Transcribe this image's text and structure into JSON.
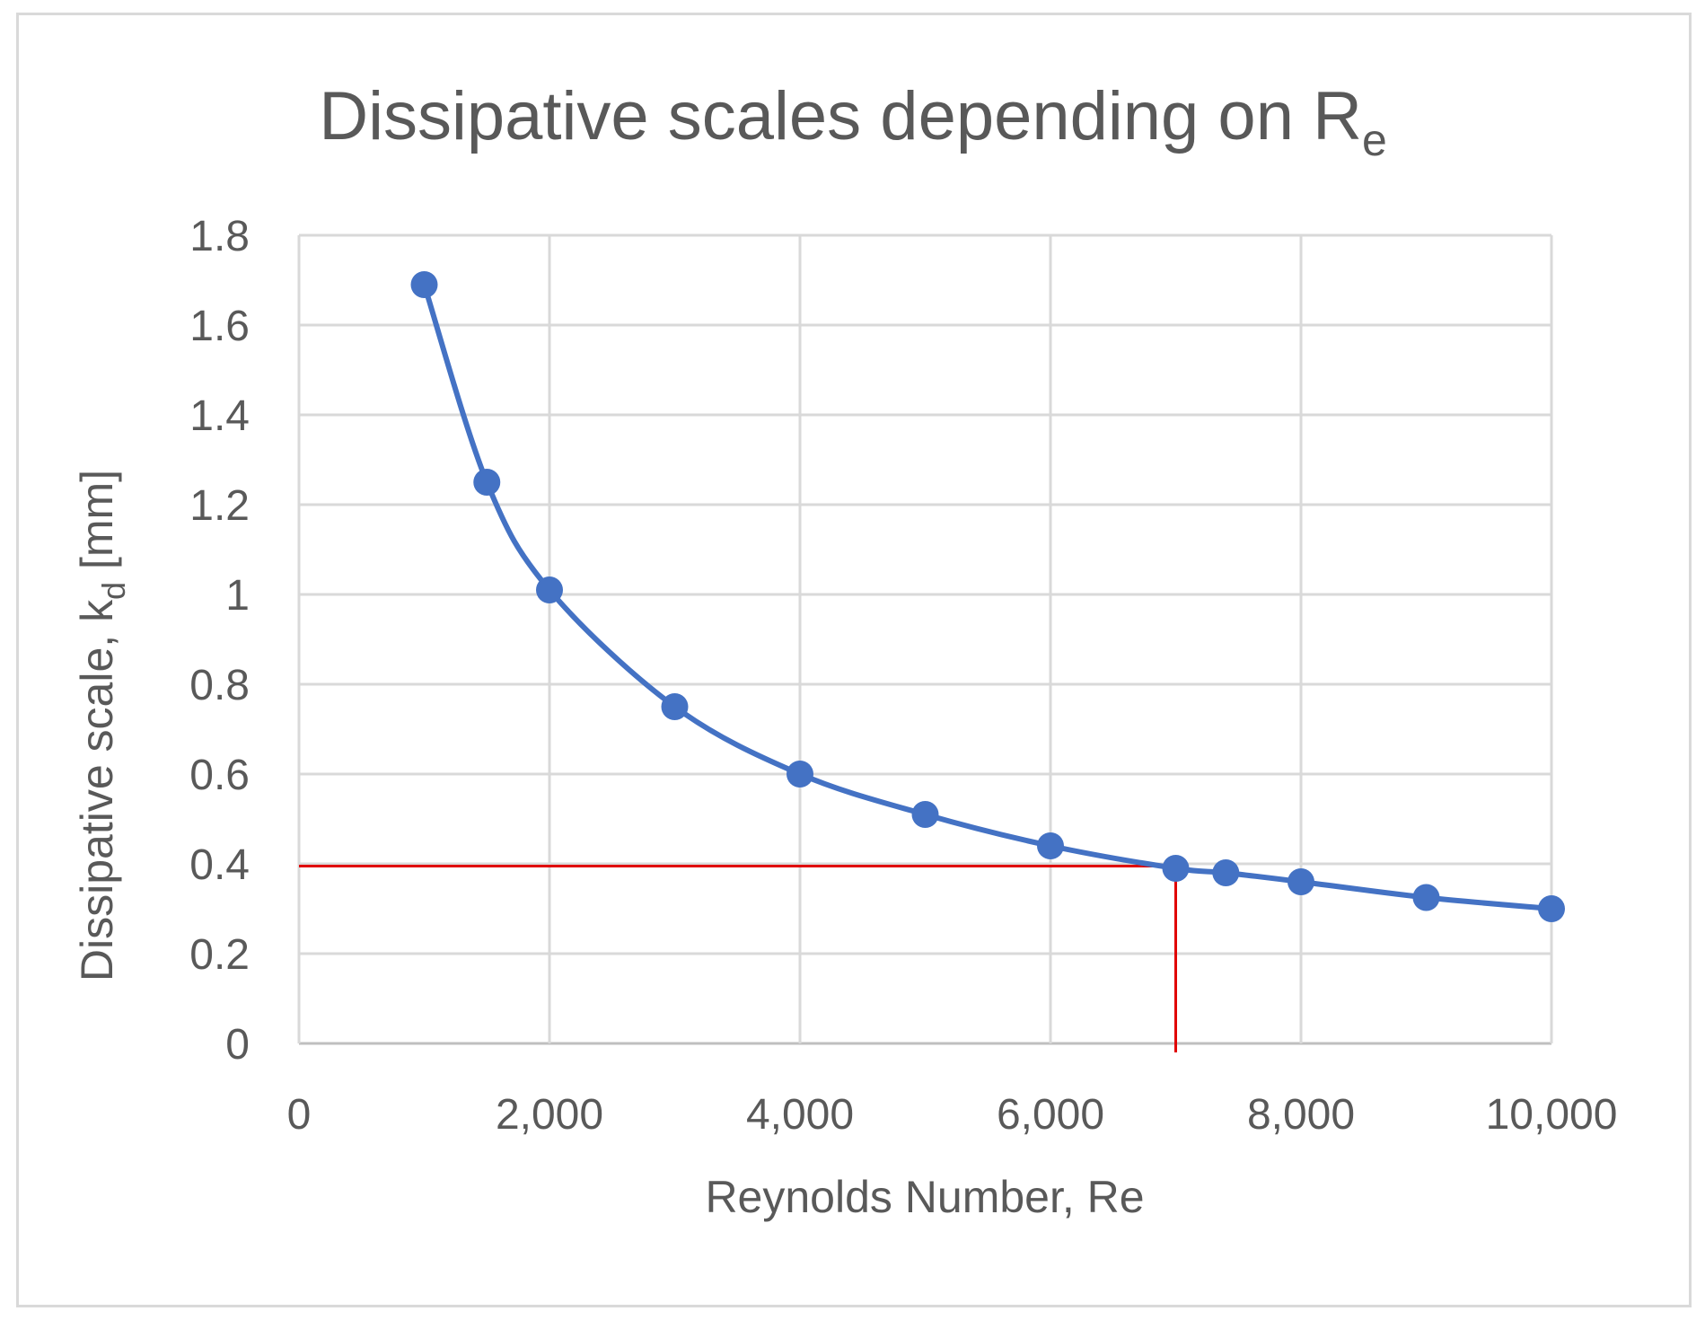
{
  "chart_data": {
    "type": "scatter",
    "title": "Dissipative scales depending on R",
    "title_subscript": "e",
    "xlabel": "Reynolds Number, Re",
    "ylabel_main": "Dissipative scale, k",
    "ylabel_subscript": "d",
    "ylabel_suffix": " [mm]",
    "xlim": [
      0,
      10000
    ],
    "ylim": [
      0,
      1.8
    ],
    "x_ticks": [
      0,
      2000,
      4000,
      6000,
      8000,
      10000
    ],
    "x_tick_labels": [
      "0",
      "2,000",
      "4,000",
      "6,000",
      "8,000",
      "10,000"
    ],
    "y_ticks": [
      0,
      0.2,
      0.4,
      0.6,
      0.8,
      1,
      1.2,
      1.4,
      1.6,
      1.8
    ],
    "y_tick_labels": [
      "0",
      "0.2",
      "0.4",
      "0.6",
      "0.8",
      "1",
      "1.2",
      "1.4",
      "1.6",
      "1.8"
    ],
    "grid": true,
    "series": [
      {
        "name": "Dissipative scale",
        "color": "#4472c4",
        "smooth": true,
        "x": [
          1000,
          1500,
          2000,
          3000,
          4000,
          5000,
          6000,
          7000,
          7400,
          8000,
          9000,
          10000
        ],
        "y": [
          1.69,
          1.25,
          1.01,
          0.75,
          0.6,
          0.51,
          0.44,
          0.39,
          0.38,
          0.36,
          0.325,
          0.3
        ]
      }
    ],
    "annotations": [
      {
        "type": "hline",
        "y": 0.395,
        "x_from": 0,
        "x_to": 7000,
        "color": "#e00000"
      },
      {
        "type": "vline",
        "x": 7000,
        "y_from": -0.02,
        "y_to": 0.395,
        "color": "#e00000"
      }
    ]
  }
}
